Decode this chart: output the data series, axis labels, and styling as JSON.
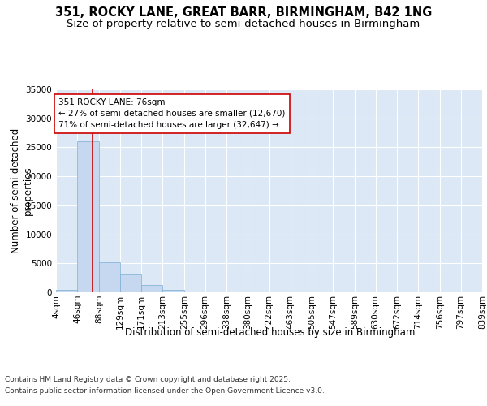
{
  "title": "351, ROCKY LANE, GREAT BARR, BIRMINGHAM, B42 1NG",
  "subtitle": "Size of property relative to semi-detached houses in Birmingham",
  "xlabel": "Distribution of semi-detached houses by size in Birmingham",
  "ylabel": "Number of semi-detached\nproperties",
  "footer_line1": "Contains HM Land Registry data © Crown copyright and database right 2025.",
  "footer_line2": "Contains public sector information licensed under the Open Government Licence v3.0.",
  "annotation_title": "351 ROCKY LANE: 76sqm",
  "annotation_line1": "← 27% of semi-detached houses are smaller (12,670)",
  "annotation_line2": "71% of semi-detached houses are larger (32,647) →",
  "property_size": 76,
  "bin_edges": [
    4,
    46,
    88,
    129,
    171,
    213,
    255,
    296,
    338,
    380,
    422,
    463,
    505,
    547,
    589,
    630,
    672,
    714,
    756,
    797,
    839
  ],
  "bin_labels": [
    "4sqm",
    "46sqm",
    "88sqm",
    "129sqm",
    "171sqm",
    "213sqm",
    "255sqm",
    "296sqm",
    "338sqm",
    "380sqm",
    "422sqm",
    "463sqm",
    "505sqm",
    "547sqm",
    "589sqm",
    "630sqm",
    "672sqm",
    "714sqm",
    "756sqm",
    "797sqm",
    "839sqm"
  ],
  "bar_heights": [
    400,
    26100,
    5200,
    3100,
    1300,
    400,
    50,
    10,
    5,
    3,
    2,
    1,
    1,
    0,
    0,
    0,
    0,
    0,
    0,
    0
  ],
  "bar_color": "#c5d8f0",
  "bar_edge_color": "#7aadd4",
  "background_color": "#dce8f5",
  "red_line_color": "#cc0000",
  "annotation_box_color": "#ffffff",
  "annotation_box_edge": "#cc0000",
  "ylim": [
    0,
    35000
  ],
  "yticks": [
    0,
    5000,
    10000,
    15000,
    20000,
    25000,
    30000,
    35000
  ],
  "title_fontsize": 10.5,
  "subtitle_fontsize": 9.5,
  "axis_label_fontsize": 8.5,
  "tick_fontsize": 7.5,
  "annotation_fontsize": 7.5,
  "footer_fontsize": 6.5
}
